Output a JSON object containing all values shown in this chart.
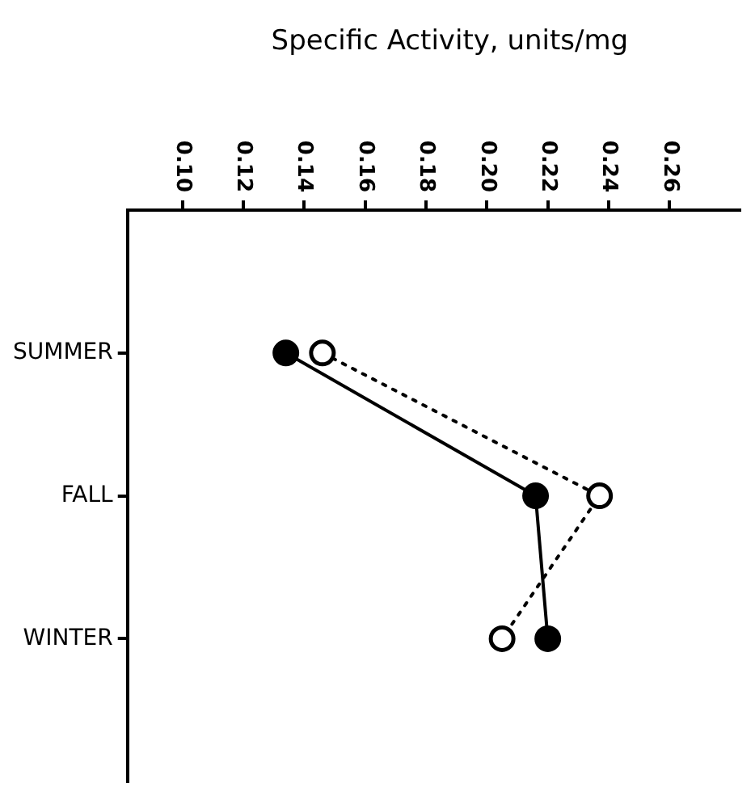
{
  "chart_data": {
    "type": "line",
    "orientation": "horizontal",
    "xlabel": "Specific Activity, units/mg",
    "categories": [
      "SUMMER",
      "FALL",
      "WINTER"
    ],
    "series": [
      {
        "color": "#000000",
        "line_style": "solid",
        "values": [
          0.134,
          0.216,
          0.22
        ]
      },
      {
        "color": "#000000",
        "line_style": "dotted",
        "values": [
          0.146,
          0.237,
          0.205
        ]
      }
    ],
    "xlim": [
      0.082,
      0.283
    ],
    "xticks": [
      {
        "value": 0.1,
        "label": "0.10"
      },
      0.12,
      0.14,
      0.16,
      0.18,
      {
        "value": 0.2,
        "label": "0.20"
      },
      0.22,
      0.24,
      0.26
    ],
    "marker": "circle",
    "grid": false,
    "legend": false
  }
}
